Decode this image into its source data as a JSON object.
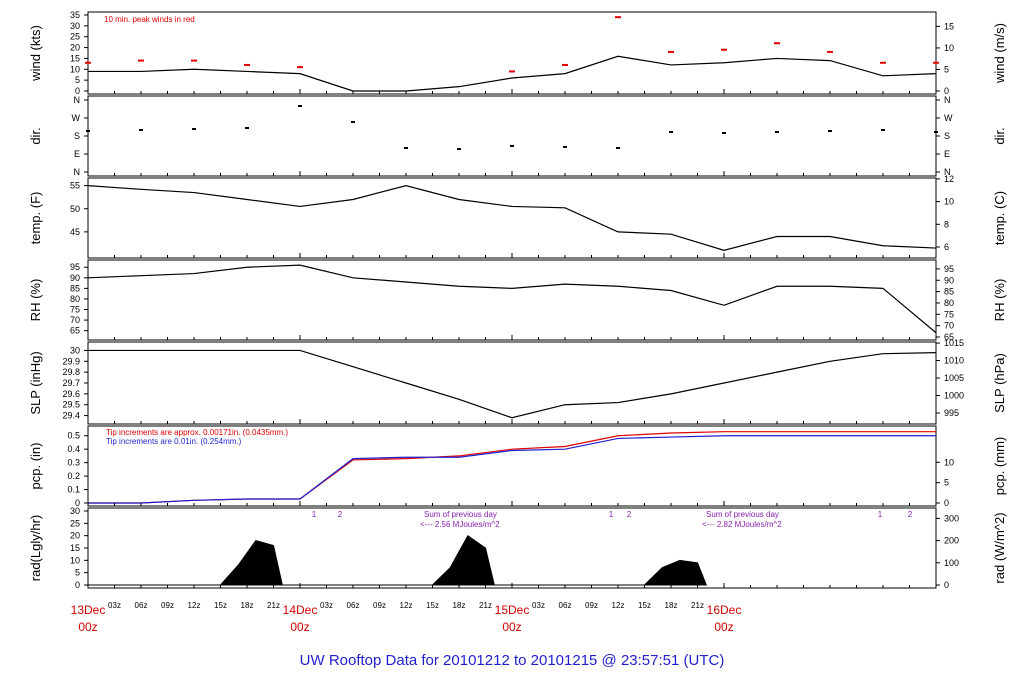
{
  "footer": {
    "title": "UW Rooftop Data for 20101212  to  20101215 @ 23:57:51  (UTC)"
  },
  "colors": {
    "primary": "#000000",
    "peak": "#e00000",
    "rain_red": "#e00000",
    "rain_blue": "#1f1fd0",
    "annotation": "#8a1fb0",
    "date": "#d00000"
  },
  "chart_data": [
    {
      "id": "wind",
      "type": "line",
      "ylabel": "wind (kts)",
      "ylabel_right": "wind (m/s)",
      "ylim": [
        0,
        35
      ],
      "ylim_right": [
        0,
        18
      ],
      "yticks": [
        0,
        5,
        10,
        15,
        20,
        25,
        30,
        35
      ],
      "yticks_right": [
        0,
        5,
        10,
        15
      ],
      "annotation": "10 min. peak winds in red",
      "series": [
        {
          "color": "#000000",
          "x": [
            0,
            6,
            12,
            18,
            24,
            30,
            36,
            42,
            48,
            54,
            60,
            66,
            72,
            78,
            84,
            90,
            96
          ],
          "y": [
            9,
            9,
            10,
            9,
            8,
            0,
            0,
            2,
            6,
            8,
            16,
            12,
            13,
            15,
            14,
            7,
            8
          ]
        },
        {
          "color": "#e00000",
          "x": [
            0,
            6,
            12,
            18,
            24,
            48,
            54,
            60,
            66,
            72,
            78,
            84,
            90,
            96
          ],
          "y": [
            13,
            14,
            14,
            12,
            11,
            9,
            12,
            34,
            18,
            19,
            22,
            18,
            13,
            13
          ]
        }
      ]
    },
    {
      "id": "dir",
      "type": "scatter",
      "ylabel": "dir.",
      "ylabel_right": "dir.",
      "yticks": [
        "N",
        "W",
        "S",
        "E",
        "N"
      ],
      "yticks_right": [
        "N",
        "W",
        "S",
        "E",
        "N"
      ],
      "series": [
        {
          "color": "#000000",
          "x": [
            0,
            6,
            12,
            18,
            24,
            30,
            36,
            42,
            48,
            54,
            60,
            66,
            72,
            78,
            84,
            90,
            96
          ],
          "y": [
            205,
            210,
            215,
            220,
            330,
            250,
            120,
            115,
            130,
            125,
            120,
            200,
            195,
            200,
            205,
            210,
            200
          ]
        }
      ]
    },
    {
      "id": "temp",
      "type": "line",
      "ylabel": "temp. (F)",
      "ylabel_right": "temp. (C)",
      "ylim": [
        40,
        56
      ],
      "yticks": [
        45,
        50,
        55
      ],
      "yticks_right": [
        6,
        8,
        10,
        12
      ],
      "series": [
        {
          "color": "#000000",
          "x": [
            0,
            6,
            12,
            18,
            24,
            30,
            36,
            42,
            48,
            54,
            60,
            66,
            72,
            78,
            84,
            90,
            96
          ],
          "y": [
            55,
            54.2,
            53.5,
            52,
            50.5,
            52,
            55,
            52,
            50.5,
            50.2,
            45,
            44.5,
            41,
            44,
            44,
            42,
            41.5
          ]
        }
      ]
    },
    {
      "id": "rh",
      "type": "line",
      "ylabel": "RH (%)",
      "ylabel_right": "RH (%)",
      "ylim": [
        62,
        97
      ],
      "yticks": [
        65,
        70,
        75,
        80,
        85,
        90,
        95
      ],
      "yticks_right": [
        65,
        70,
        75,
        80,
        85,
        90,
        95
      ],
      "series": [
        {
          "color": "#000000",
          "x": [
            0,
            6,
            12,
            18,
            24,
            30,
            36,
            42,
            48,
            54,
            60,
            66,
            72,
            78,
            84,
            90,
            96
          ],
          "y": [
            90,
            91,
            92,
            95,
            96,
            90,
            88,
            86,
            85,
            87,
            86,
            84,
            77,
            86,
            86,
            85,
            64
          ]
        }
      ]
    },
    {
      "id": "slp",
      "type": "line",
      "ylabel": "SLP (inHg)",
      "ylabel_right": "SLP (hPa)",
      "ylim": [
        29.35,
        30.05
      ],
      "yticks": [
        29.4,
        29.5,
        29.6,
        29.7,
        29.8,
        29.9,
        30.0
      ],
      "yticks_right": [
        995,
        1000,
        1005,
        1010,
        1015
      ],
      "series": [
        {
          "color": "#000000",
          "x": [
            0,
            6,
            12,
            18,
            24,
            30,
            36,
            42,
            48,
            54,
            60,
            66,
            72,
            78,
            84,
            90,
            96
          ],
          "y": [
            30.0,
            30.0,
            30.0,
            30.0,
            30.0,
            29.85,
            29.7,
            29.55,
            29.38,
            29.5,
            29.52,
            29.6,
            29.7,
            29.8,
            29.9,
            29.97,
            29.98
          ]
        }
      ]
    },
    {
      "id": "pcp",
      "type": "line",
      "ylabel": "pcp. (in)",
      "ylabel_right": "pcp. (mm)",
      "ylim": [
        0,
        0.55
      ],
      "yticks": [
        0,
        0.1,
        0.2,
        0.3,
        0.4,
        0.5
      ],
      "yticks_right": [
        0,
        5,
        10
      ],
      "annotations": [
        "Tip increments are approx. 0.00171in. (0.0435mm.)",
        "Tip increments are 0.01in. (0.254mm.)"
      ],
      "series": [
        {
          "color": "#e00000",
          "x": [
            0,
            6,
            12,
            18,
            24,
            30,
            36,
            42,
            48,
            54,
            60,
            66,
            72,
            78,
            84,
            90,
            96
          ],
          "y": [
            0,
            0,
            0.02,
            0.03,
            0.03,
            0.32,
            0.33,
            0.35,
            0.4,
            0.42,
            0.5,
            0.52,
            0.53,
            0.53,
            0.53,
            0.53,
            0.53
          ]
        },
        {
          "color": "#1f1fd0",
          "x": [
            0,
            6,
            12,
            18,
            24,
            30,
            36,
            42,
            48,
            54,
            60,
            66,
            72,
            78,
            84,
            90,
            96
          ],
          "y": [
            0,
            0,
            0.02,
            0.03,
            0.03,
            0.33,
            0.34,
            0.34,
            0.39,
            0.4,
            0.48,
            0.49,
            0.5,
            0.5,
            0.5,
            0.5,
            0.5
          ]
        }
      ]
    },
    {
      "id": "rad",
      "type": "area",
      "ylabel": "rad(Lgly/hr)",
      "ylabel_right": "rad (W/m^2)",
      "ylim": [
        0,
        30
      ],
      "yticks": [
        0,
        5,
        10,
        15,
        20,
        25,
        30
      ],
      "yticks_right": [
        0,
        100,
        200,
        300
      ],
      "annotations": [
        "Sum of previous day",
        "<--- 2.56 MJoules/m^2",
        "Sum of previous day",
        "<--- 2.82 MJoules/m^2",
        "1",
        "2",
        "1",
        "2",
        "1",
        "2"
      ],
      "series": [
        {
          "color": "#000000",
          "x": [
            0,
            15,
            17,
            19,
            21,
            22,
            39,
            41,
            43,
            45,
            46,
            63,
            65,
            67,
            69,
            70
          ],
          "y": [
            0,
            0,
            8,
            18,
            16,
            0,
            0,
            7,
            20,
            15,
            0,
            0,
            7,
            10,
            9,
            0
          ]
        }
      ]
    },
    {
      "id": "time-axis",
      "xtick_labels": [
        "03z",
        "06z",
        "09z",
        "12z",
        "15z",
        "18z",
        "21z",
        "03z",
        "06z",
        "09z",
        "12z",
        "15z",
        "18z",
        "21z",
        "03z",
        "06z",
        "09z",
        "12z",
        "15z",
        "18z",
        "21z"
      ],
      "date_labels": [
        "13Dec",
        "14Dec",
        "15Dec",
        "16Dec"
      ],
      "date_sublabels": [
        "00z",
        "00z",
        "00z",
        "00z"
      ]
    }
  ]
}
